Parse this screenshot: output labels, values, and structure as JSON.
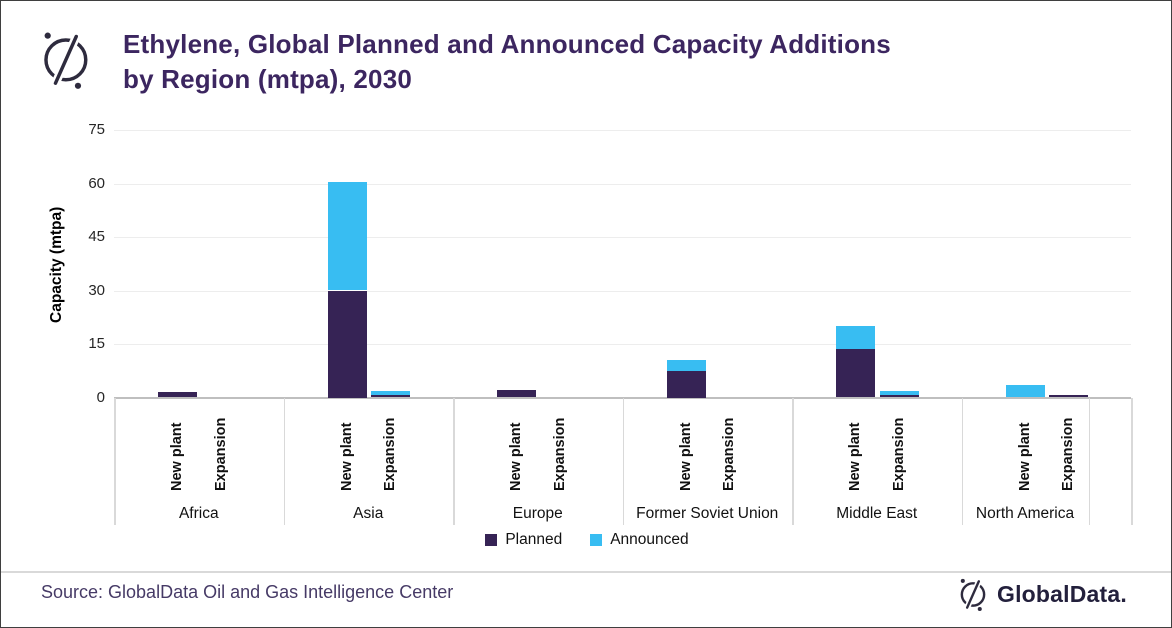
{
  "header": {
    "title_line1": "Ethylene, Global Planned and Announced Capacity Additions",
    "title_line2": "by Region (mtpa), 2030"
  },
  "colors": {
    "title": "#3c2660",
    "planned": "#362355",
    "announced": "#38bdf2",
    "source_text": "#463a66",
    "logo_ink": "#2e2b3e"
  },
  "chart_data": {
    "type": "bar",
    "stacked": true,
    "title": "Ethylene, Global Planned and Announced Capacity Additions by Region (mtpa), 2030",
    "ylabel": "Capacity (mtpa)",
    "ylim": [
      0,
      75
    ],
    "yticks": [
      0,
      15,
      30,
      45,
      60,
      75
    ],
    "grid": "horizontal",
    "legend_position": "bottom-center",
    "bar_types": [
      "New plant",
      "Expansion"
    ],
    "series": [
      {
        "name": "Planned",
        "color": "#362355"
      },
      {
        "name": "Announced",
        "color": "#38bdf2"
      }
    ],
    "groups": [
      {
        "region": "Africa",
        "bars": [
          {
            "type": "New plant",
            "planned": 1.5,
            "announced": 0
          },
          {
            "type": "Expansion",
            "planned": 0,
            "announced": 0
          }
        ]
      },
      {
        "region": "Asia",
        "bars": [
          {
            "type": "New plant",
            "planned": 30,
            "announced": 30.5
          },
          {
            "type": "Expansion",
            "planned": 0.8,
            "announced": 1
          }
        ]
      },
      {
        "region": "Europe",
        "bars": [
          {
            "type": "New plant",
            "planned": 2,
            "announced": 0
          },
          {
            "type": "Expansion",
            "planned": 0,
            "announced": 0
          }
        ]
      },
      {
        "region": "Former Soviet Union",
        "bars": [
          {
            "type": "New plant",
            "planned": 7.5,
            "announced": 3
          },
          {
            "type": "Expansion",
            "planned": 0,
            "announced": 0
          }
        ]
      },
      {
        "region": "Middle East",
        "bars": [
          {
            "type": "New plant",
            "planned": 13.5,
            "announced": 6.5
          },
          {
            "type": "Expansion",
            "planned": 0.6,
            "announced": 1.2
          }
        ]
      },
      {
        "region": "North America",
        "bars": [
          {
            "type": "New plant",
            "planned": 0,
            "announced": 3.5
          },
          {
            "type": "Expansion",
            "planned": 0.7,
            "announced": 0
          }
        ]
      }
    ]
  },
  "footer": {
    "source_text": "Source: GlobalData Oil and Gas Intelligence Center",
    "brand": "GlobalData."
  }
}
